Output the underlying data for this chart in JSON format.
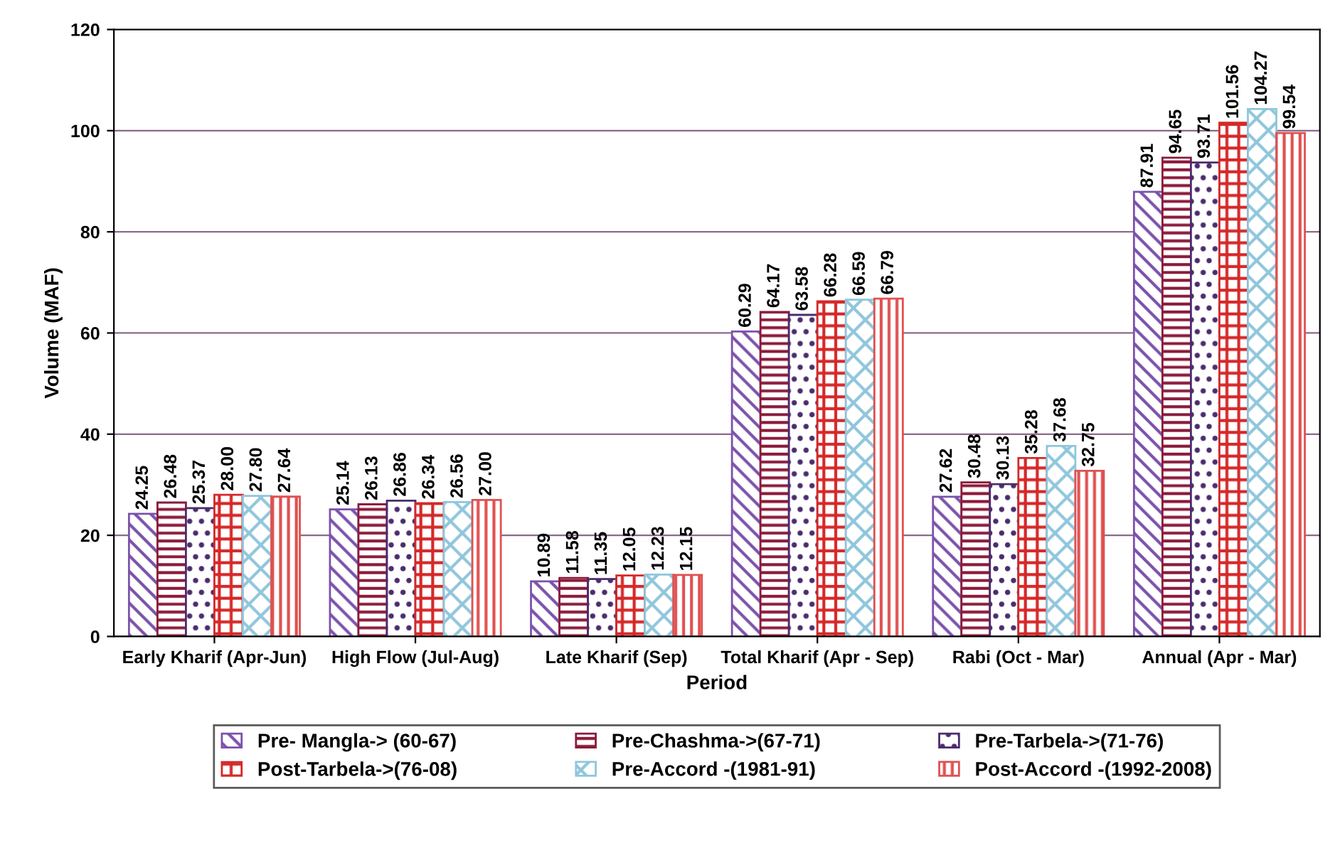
{
  "chart_data": {
    "type": "bar",
    "xlabel": "Period",
    "ylabel": "Volume (MAF)",
    "categories": [
      "Early Kharif (Apr-Jun)",
      "High Flow (Jul-Aug)",
      "Late Kharif (Sep)",
      "Total Kharif (Apr - Sep)",
      "Rabi (Oct - Mar)",
      "Annual (Apr - Mar)"
    ],
    "series": [
      {
        "name": "Pre- Mangla-> (60-67)",
        "color": "#7b52ab",
        "values": [
          24.25,
          25.14,
          10.89,
          60.29,
          27.62,
          87.91
        ]
      },
      {
        "name": "Pre-Chashma->(67-71)",
        "color": "#8b1a3a",
        "values": [
          26.48,
          26.13,
          11.58,
          64.17,
          30.48,
          94.65
        ]
      },
      {
        "name": "Pre-Tarbela->(71-76)",
        "color": "#4b2c6e",
        "values": [
          25.37,
          26.86,
          11.35,
          63.58,
          30.13,
          93.71
        ]
      },
      {
        "name": "Post-Tarbela->(76-08)",
        "color": "#d62828",
        "values": [
          28.0,
          26.34,
          12.05,
          66.28,
          35.28,
          101.56
        ]
      },
      {
        "name": "Pre-Accord -(1981-91)",
        "color": "#8fc6dc",
        "values": [
          27.8,
          26.56,
          12.23,
          66.59,
          37.68,
          104.27
        ]
      },
      {
        "name": "Post-Accord -(1992-2008)",
        "color": "#e05050",
        "values": [
          27.64,
          27.0,
          12.15,
          66.79,
          32.75,
          99.54
        ]
      }
    ],
    "value_labels": [
      [
        "24.25",
        "25.14",
        "10.89",
        "60.29",
        "27.62",
        "87.91"
      ],
      [
        "26.48",
        "26.13",
        "11.58",
        "64.17",
        "30.48",
        "94.65"
      ],
      [
        "25.37",
        "26.86",
        "11.35",
        "63.58",
        "30.13",
        "93.71"
      ],
      [
        "28.00",
        "26.34",
        "12.05",
        "66.28",
        "35.28",
        "101.56"
      ],
      [
        "27.80",
        "26.56",
        "12.23",
        "66.59",
        "37.68",
        "104.27"
      ],
      [
        "27.64",
        "27.00",
        "12.15",
        "66.79",
        "32.75",
        "99.54"
      ]
    ],
    "ylim": [
      0,
      120
    ],
    "yticks": [
      0,
      20,
      40,
      60,
      80,
      100,
      120
    ],
    "grid": "y",
    "legend": "bottom"
  }
}
